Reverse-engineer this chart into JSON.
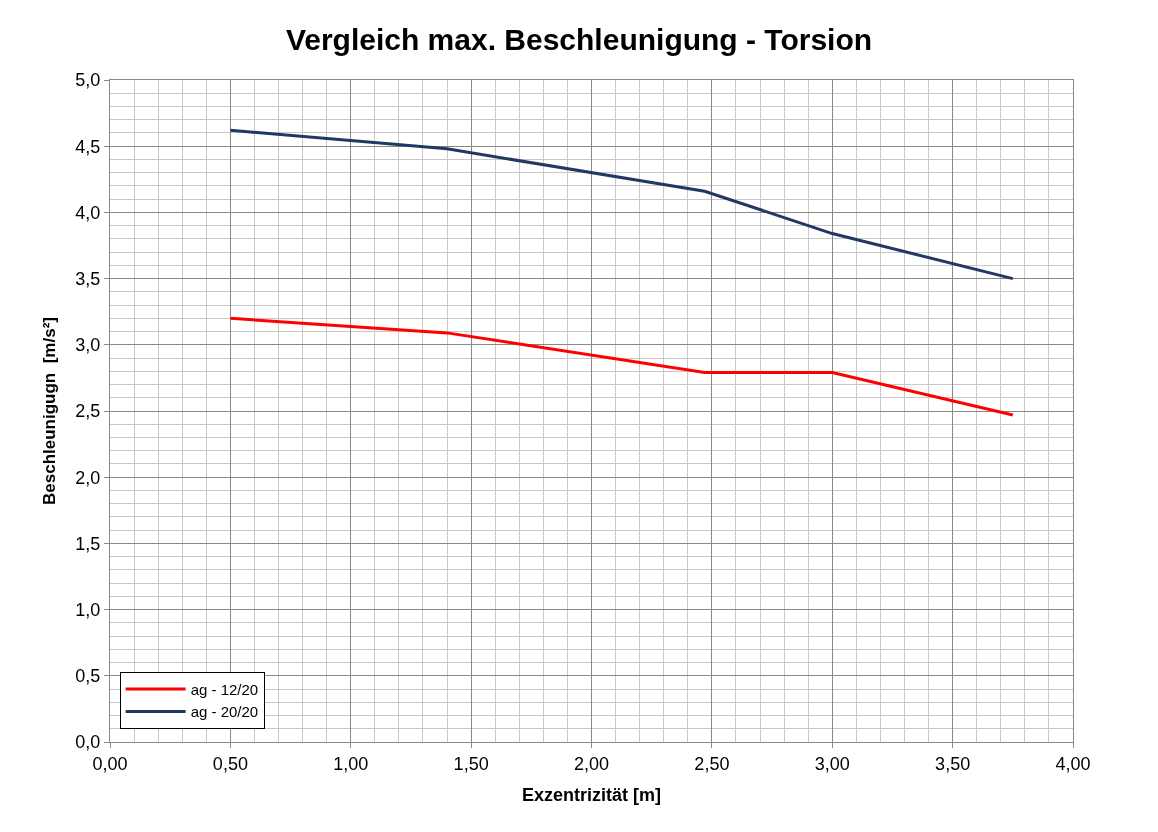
{
  "chart_data": {
    "type": "line",
    "title": "Vergleich max. Beschleunigung - Torsion",
    "xlabel": "Exzentrizität [m]",
    "ylabel": "Beschleunigugn  [m/s²]",
    "x": [
      0.5,
      1.4,
      2.47,
      3.0,
      3.75
    ],
    "series": [
      {
        "name": "ag - 12/20",
        "color": "#ff0000",
        "values": [
          3.2,
          3.09,
          2.79,
          2.79,
          2.47
        ]
      },
      {
        "name": "ag - 20/20",
        "color": "#1f3864",
        "values": [
          4.62,
          4.48,
          4.16,
          3.84,
          3.5
        ]
      }
    ],
    "xlim": [
      0,
      4
    ],
    "xticks": [
      {
        "value": 0,
        "label": "0,00"
      },
      {
        "value": 0.5,
        "label": "0,50"
      },
      {
        "value": 1,
        "label": "1,00"
      },
      {
        "value": 1.5,
        "label": "1,50"
      },
      {
        "value": 2,
        "label": "2,00"
      },
      {
        "value": 2.5,
        "label": "2,50"
      },
      {
        "value": 3,
        "label": "3,00"
      },
      {
        "value": 3.5,
        "label": "3,50"
      },
      {
        "value": 4,
        "label": "4,00"
      }
    ],
    "ylim": [
      0,
      5
    ],
    "yticks": [
      {
        "value": 0,
        "label": "0,0"
      },
      {
        "value": 0.5,
        "label": "0,5"
      },
      {
        "value": 1,
        "label": "1,0"
      },
      {
        "value": 1.5,
        "label": "1,5"
      },
      {
        "value": 2,
        "label": "2,0"
      },
      {
        "value": 2.5,
        "label": "2,5"
      },
      {
        "value": 3,
        "label": "3,0"
      },
      {
        "value": 3.5,
        "label": "3,5"
      },
      {
        "value": 4,
        "label": "4,0"
      },
      {
        "value": 4.5,
        "label": "4,5"
      },
      {
        "value": 5,
        "label": "5,0"
      }
    ],
    "grid": true,
    "legend": "bottom left",
    "marker": "none",
    "line_style": "solid"
  }
}
